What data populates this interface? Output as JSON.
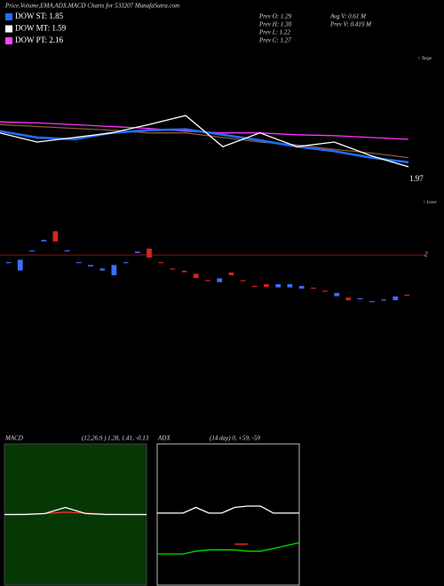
{
  "title": "Price,Volume,EMA,ADX,MACD Charts for 533207 MunafaSutra.com",
  "legend": [
    {
      "text": "DOW ST: 1.85",
      "color": "#1e6fff"
    },
    {
      "text": "DOW MT: 1.59",
      "color": "#ffffff"
    },
    {
      "text": "DOW PT: 2.16",
      "color": "#ff44ff"
    }
  ],
  "stats": [
    "Prev  O: 1.29",
    "Prev  H: 1.30",
    "Prev  L: 1.22",
    "Prev  C: 1.27",
    "Avg V: 0.61 M",
    "Prev  V: 0.419 M"
  ],
  "chart_data": [
    {
      "type": "line",
      "ylim": [
        1.0,
        2.6
      ],
      "last_label": 1.97,
      "note": "< Targe",
      "series": [
        {
          "color": "#8b5a3c",
          "values": [
            1.82,
            1.8,
            1.78,
            1.76,
            1.73,
            1.73,
            1.68,
            1.63,
            1.6,
            1.55,
            1.51,
            1.46
          ]
        },
        {
          "color": "#ff33ff",
          "values": [
            1.85,
            1.84,
            1.82,
            1.8,
            1.78,
            1.75,
            1.73,
            1.73,
            1.71,
            1.7,
            1.68,
            1.66
          ]
        },
        {
          "color": "#1e6fff",
          "values": [
            1.75,
            1.68,
            1.66,
            1.73,
            1.76,
            1.77,
            1.71,
            1.65,
            1.58,
            1.53,
            1.46,
            1.41
          ]
        },
        {
          "color": "#ffffff",
          "values": [
            1.73,
            1.63,
            1.68,
            1.73,
            1.82,
            1.92,
            1.58,
            1.73,
            1.58,
            1.63,
            1.48,
            1.36
          ]
        }
      ]
    },
    {
      "type": "candlestick",
      "ylim": [
        0.89,
        2.87
      ],
      "level": 2,
      "note": "< Lowe",
      "up_color": "#3b6fff",
      "down_color": "#e02020",
      "open": [
        1.86,
        1.73,
        2.06,
        2.23,
        2.41,
        2.06,
        1.86,
        1.8,
        1.73,
        1.65,
        1.86,
        2.03,
        2.11,
        1.88,
        1.77,
        1.73,
        1.68,
        1.57,
        1.53,
        1.7,
        1.57,
        1.47,
        1.5,
        1.44,
        1.44,
        1.42,
        1.44,
        1.39,
        1.29,
        1.27,
        1.24,
        1.19,
        1.22,
        1.22,
        1.32
      ],
      "close": [
        1.88,
        1.92,
        2.08,
        2.26,
        2.23,
        2.08,
        1.88,
        1.83,
        1.77,
        1.83,
        1.88,
        2.06,
        1.95,
        1.86,
        1.75,
        1.7,
        1.6,
        1.55,
        1.6,
        1.65,
        1.55,
        1.45,
        1.45,
        1.5,
        1.5,
        1.47,
        1.42,
        1.37,
        1.35,
        1.22,
        1.26,
        1.21,
        1.24,
        1.29,
        1.3
      ]
    },
    {
      "type": "line",
      "title": "MACD",
      "subtitle": "(12,26,9 ) 1.28, 1.41, -0.13",
      "ylim": [
        -1.5,
        1.5
      ],
      "series": [
        {
          "color": "#ff3030",
          "values": [
            0,
            0.01,
            0.02,
            0.05,
            0.03,
            0.01,
            0,
            0
          ]
        },
        {
          "color": "#ffffff",
          "values": [
            0,
            0,
            0.02,
            0.15,
            0.02,
            0,
            0,
            0
          ]
        }
      ]
    },
    {
      "type": "line",
      "title": "ADX",
      "subtitle": "(14 day) 0, +59, -59",
      "ylim": [
        0,
        100
      ],
      "series": [
        {
          "color": "#ffffff",
          "values": [
            51,
            51,
            51,
            55,
            51,
            51,
            55,
            56,
            56,
            51,
            51,
            51
          ]
        },
        {
          "color": "#ff3030",
          "values": [
            null,
            null,
            null,
            null,
            null,
            null,
            29,
            29,
            null,
            null,
            null,
            null
          ]
        },
        {
          "color": "#00e000",
          "values": [
            22,
            22,
            22,
            24,
            25,
            25,
            25,
            24,
            24,
            26,
            28,
            30
          ]
        }
      ]
    }
  ]
}
